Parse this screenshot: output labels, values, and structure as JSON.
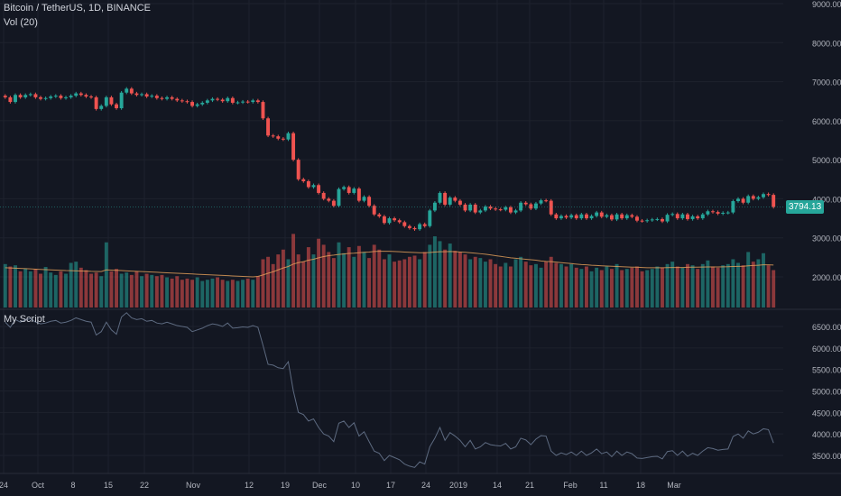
{
  "header": {
    "symbol": "Bitcoin / TetherUS, 1D, BINANCE",
    "volume_label": "Vol (20)",
    "indicator_label": "My Script"
  },
  "last_price": "3794.13",
  "colors": {
    "up": "#26a69a",
    "down": "#ef5350",
    "bg": "#131722",
    "grid": "#1e222d",
    "text": "#b2b5be",
    "ma": "#e8a25b",
    "script_line": "#5d6a80"
  },
  "chart_data": [
    {
      "type": "candlestick",
      "title": "Bitcoin / TetherUS, 1D, BINANCE",
      "ylim": [
        2800,
        9000
      ],
      "y_ticks": [
        "9000.00",
        "8000.00",
        "7000.00",
        "6000.00",
        "5000.00",
        "4000.00",
        "3000.00",
        "2000.00"
      ],
      "x_ticks": [
        "24",
        "Oct",
        "8",
        "15",
        "22",
        "Nov",
        "12",
        "19",
        "Dec",
        "10",
        "17",
        "24",
        "2019",
        "14",
        "21",
        "Feb",
        "11",
        "18",
        "Mar"
      ],
      "close": [
        6600,
        6480,
        6660,
        6600,
        6660,
        6680,
        6600,
        6560,
        6580,
        6620,
        6640,
        6580,
        6600,
        6640,
        6700,
        6660,
        6620,
        6600,
        6300,
        6380,
        6600,
        6420,
        6320,
        6720,
        6820,
        6700,
        6660,
        6680,
        6620,
        6640,
        6580,
        6560,
        6600,
        6560,
        6520,
        6500,
        6480,
        6380,
        6420,
        6460,
        6520,
        6560,
        6540,
        6500,
        6580,
        6460,
        6470,
        6490,
        6480,
        6520,
        6480,
        6060,
        5620,
        5600,
        5540,
        5520,
        5680,
        5000,
        4500,
        4450,
        4300,
        4350,
        4150,
        4000,
        3950,
        3820,
        4250,
        4300,
        4150,
        4260,
        3950,
        4050,
        3820,
        3600,
        3550,
        3380,
        3500,
        3450,
        3400,
        3300,
        3250,
        3220,
        3350,
        3300,
        3700,
        3900,
        4150,
        3850,
        4030,
        3950,
        3850,
        3700,
        3850,
        3650,
        3700,
        3800,
        3750,
        3730,
        3720,
        3780,
        3650,
        3700,
        3900,
        3860,
        3750,
        3880,
        3960,
        3950,
        3600,
        3500,
        3560,
        3520,
        3580,
        3500,
        3600,
        3500,
        3560,
        3650,
        3540,
        3580,
        3470,
        3600,
        3500,
        3580,
        3540,
        3440,
        3430,
        3450,
        3470,
        3480,
        3420,
        3590,
        3610,
        3500,
        3600,
        3480,
        3550,
        3500,
        3600,
        3680,
        3660,
        3620,
        3640,
        3650,
        3940,
        4000,
        3900,
        4070,
        4000,
        4040,
        4120,
        4100,
        3790
      ],
      "volume": [
        1800,
        1700,
        1750,
        1500,
        1620,
        1500,
        1600,
        1400,
        1680,
        1450,
        1350,
        1500,
        1400,
        1850,
        1900,
        1650,
        1550,
        1400,
        1450,
        1300,
        2700,
        1500,
        1600,
        1400,
        1450,
        1350,
        1500,
        1300,
        1400,
        1350,
        1300,
        1350,
        1250,
        1200,
        1300,
        1150,
        1200,
        1150,
        1250,
        1100,
        1150,
        1200,
        1250,
        1150,
        1100,
        1150,
        1100,
        1150,
        1200,
        1150,
        1300,
        2000,
        2100,
        1800,
        2200,
        2400,
        2000,
        3050,
        2200,
        1900,
        2500,
        2200,
        2850,
        2600,
        2300,
        2050,
        2700,
        2250,
        2500,
        2100,
        2550,
        2300,
        2050,
        2600,
        2400,
        2000,
        2200,
        1900,
        1950,
        2000,
        2100,
        2150,
        2000,
        2300,
        2600,
        2950,
        2750,
        2400,
        2650,
        2350,
        2300,
        2200,
        2000,
        2100,
        2050,
        1900,
        2000,
        1800,
        1700,
        1850,
        1700,
        2000,
        2100,
        1900,
        1750,
        1800,
        1650,
        1900,
        2100,
        1850,
        1800,
        1700,
        1800,
        1650,
        1600,
        1700,
        1500,
        1650,
        1550,
        1700,
        1600,
        1800,
        1550,
        1600,
        1650,
        1700,
        1500,
        1550,
        1600,
        1700,
        1650,
        1800,
        1900,
        1700,
        1650,
        1800,
        1750,
        1600,
        1800,
        1950,
        1700,
        1650,
        1750,
        1800,
        2000,
        1850,
        1750,
        2300,
        1900,
        2000,
        2250,
        1750,
        1550
      ],
      "volume_ma": [
        1650,
        1640,
        1630,
        1620,
        1610,
        1600,
        1590,
        1580,
        1570,
        1560,
        1550,
        1540,
        1530,
        1525,
        1520,
        1515,
        1510,
        1500,
        1495,
        1490,
        1560,
        1550,
        1540,
        1530,
        1520,
        1510,
        1500,
        1490,
        1480,
        1470,
        1460,
        1450,
        1440,
        1430,
        1420,
        1410,
        1400,
        1390,
        1380,
        1370,
        1360,
        1350,
        1340,
        1330,
        1320,
        1310,
        1300,
        1290,
        1280,
        1270,
        1290,
        1350,
        1420,
        1480,
        1560,
        1640,
        1700,
        1800,
        1860,
        1900,
        1960,
        2000,
        2060,
        2110,
        2150,
        2170,
        2200,
        2220,
        2240,
        2250,
        2270,
        2290,
        2300,
        2320,
        2330,
        2330,
        2330,
        2320,
        2310,
        2300,
        2290,
        2280,
        2270,
        2270,
        2280,
        2300,
        2310,
        2310,
        2320,
        2310,
        2300,
        2290,
        2270,
        2250,
        2230,
        2210,
        2180,
        2150,
        2120,
        2090,
        2060,
        2040,
        2020,
        2000,
        1980,
        1960,
        1930,
        1910,
        1900,
        1880,
        1860,
        1840,
        1820,
        1800,
        1780,
        1770,
        1750,
        1740,
        1730,
        1720,
        1710,
        1700,
        1690,
        1680,
        1670,
        1670,
        1660,
        1650,
        1650,
        1650,
        1650,
        1655,
        1660,
        1660,
        1660,
        1665,
        1670,
        1670,
        1675,
        1680,
        1680,
        1680,
        1685,
        1690,
        1700,
        1705,
        1710,
        1730,
        1740,
        1750,
        1770,
        1770,
        1760
      ]
    },
    {
      "type": "line",
      "title": "My Script",
      "ylim": [
        3200,
        6800
      ],
      "y_ticks": [
        "6500.0000",
        "6000.0000",
        "5500.0000",
        "5000.0000",
        "4500.0000",
        "4000.0000",
        "3500.0000"
      ],
      "note": "indicator line follows the daily close series above"
    }
  ]
}
